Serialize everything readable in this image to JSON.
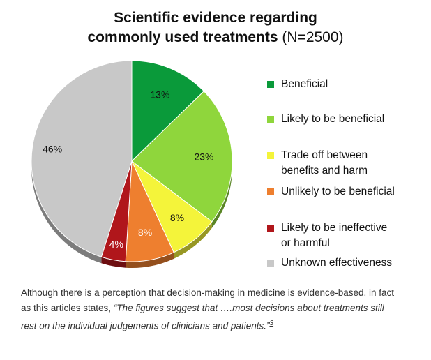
{
  "chart_data": {
    "type": "pie",
    "title": "Scientific evidence regarding commonly used treatments",
    "title_line1": "Scientific evidence regarding",
    "title_line2": "commonly used treatments",
    "title_suffix": "(N=2500)",
    "legend_position": "right",
    "slices": [
      {
        "name": "Beneficial",
        "value": 13,
        "label": "13%",
        "color": "#0a9a3a",
        "label_color": "#111111"
      },
      {
        "name": "Likely to be beneficial",
        "value": 23,
        "label": "23%",
        "color": "#8fd63c",
        "label_color": "#111111"
      },
      {
        "name": "Trade off between benefits and harm",
        "value": 8,
        "label": "8%",
        "color": "#f4f43a",
        "label_color": "#111111"
      },
      {
        "name": "Unlikely to be beneficial",
        "value": 8,
        "label": "8%",
        "color": "#ee7f2f",
        "label_color": "#ffffff"
      },
      {
        "name": "Likely to be ineffective or harmful",
        "value": 4,
        "label": "4%",
        "color": "#b0161b",
        "label_color": "#ffffff"
      },
      {
        "name": "Unknown effectiveness",
        "value": 46,
        "label": "46%",
        "color": "#c8c8c8",
        "label_color": "#111111"
      }
    ]
  },
  "legend": {
    "items": [
      {
        "line1": "Beneficial",
        "line2": ""
      },
      {
        "line1": "Likely to be beneficial",
        "line2": ""
      },
      {
        "line1": "Trade off between",
        "line2": "benefits and harm"
      },
      {
        "line1": "Unlikely to be beneficial",
        "line2": ""
      },
      {
        "line1": "Likely to be ineffective",
        "line2": "or harmful"
      },
      {
        "line1": "Unknown effectiveness",
        "line2": ""
      }
    ]
  },
  "caption": {
    "text_plain": "Although there is a perception that decision-making in medicine is evidence-based, in fact as this articles states, ",
    "quote": "“The figures suggest that ….most decisions about treatments still rest on the individual judgements of clinicians and patients.”",
    "ref": "3"
  }
}
